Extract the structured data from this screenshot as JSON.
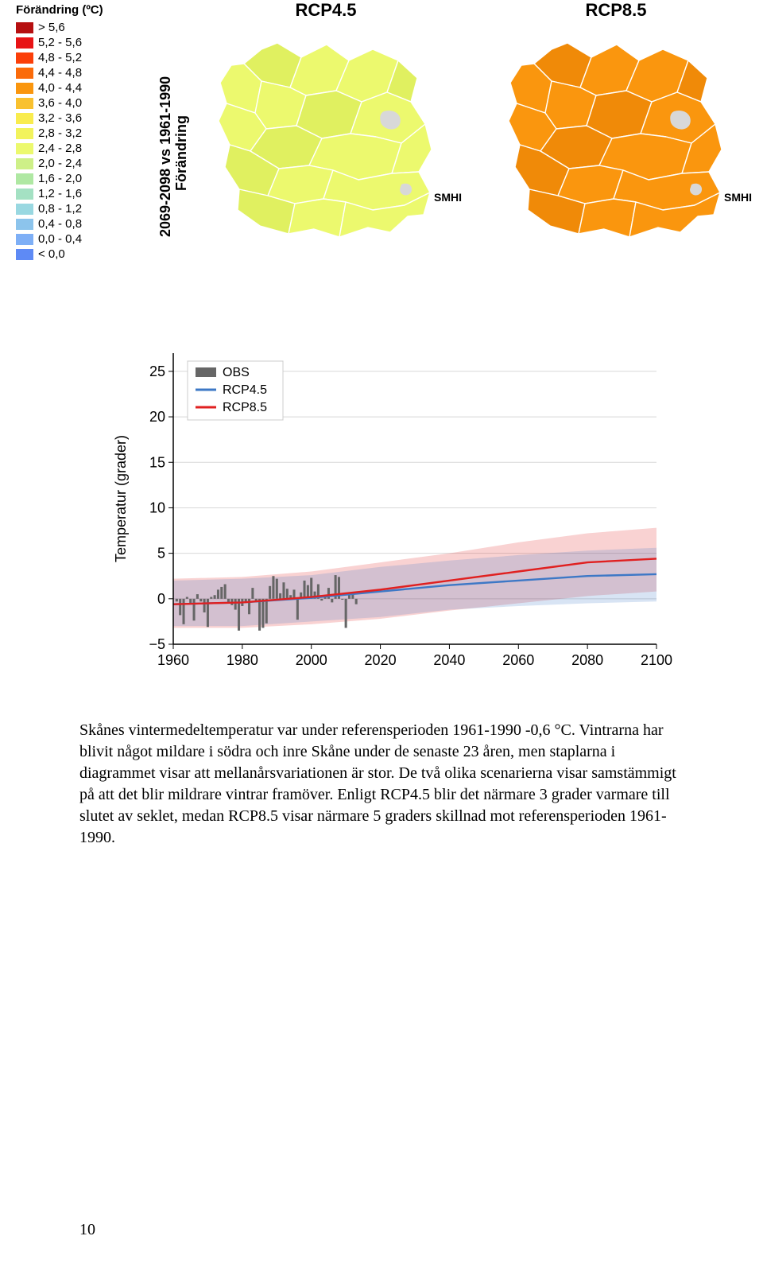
{
  "legend": {
    "title": "Förändring (ºC)",
    "items": [
      {
        "color": "#b60f10",
        "label": "> 5,6"
      },
      {
        "color": "#e81315",
        "label": "5,2 - 5,6"
      },
      {
        "color": "#fb3f09",
        "label": "4,8 - 5,2"
      },
      {
        "color": "#fb6b0a",
        "label": "4,4 - 4,8"
      },
      {
        "color": "#fa960e",
        "label": "4,0 - 4,4"
      },
      {
        "color": "#f9c12f",
        "label": "3,6 - 4,0"
      },
      {
        "color": "#f9ec4e",
        "label": "3,2 - 3,6"
      },
      {
        "color": "#f2f35c",
        "label": "2,8 - 3,2"
      },
      {
        "color": "#ecf96e",
        "label": "2,4 - 2,8"
      },
      {
        "color": "#cef088",
        "label": "2,0 - 2,4"
      },
      {
        "color": "#afe8a3",
        "label": "1,6 - 2,0"
      },
      {
        "color": "#a4e1c3",
        "label": "1,2 - 1,6"
      },
      {
        "color": "#99d8e1",
        "label": "0,8 - 1,2"
      },
      {
        "color": "#8cc4ec",
        "label": "0,4 - 0,8"
      },
      {
        "color": "#7eaff6",
        "label": "0,0 - 0,4"
      },
      {
        "color": "#5e8af5",
        "label": "< 0,0"
      }
    ]
  },
  "side_label": {
    "line1": "Förändring",
    "line2": "2069-2098 vs 1961-1990"
  },
  "maps": {
    "left": {
      "title": "RCP4.5",
      "fill": "#ecf96e",
      "fill_dark": "#e0f060",
      "attr": "SMHI"
    },
    "right": {
      "title": "RCP8.5",
      "fill": "#fa960e",
      "fill_dark": "#f08a08",
      "attr": "SMHI"
    }
  },
  "chart": {
    "ylabel": "Temperatur (grader)",
    "xlim": [
      1960,
      2100
    ],
    "ylim": [
      -5,
      27
    ],
    "xticks": [
      1960,
      1980,
      2000,
      2020,
      2040,
      2060,
      2080,
      2100
    ],
    "yticks": [
      -5,
      0,
      5,
      10,
      15,
      20,
      25
    ],
    "grid_color": "#d8d8d8",
    "axis_color": "#000000",
    "background": "#ffffff",
    "legend_items": [
      {
        "label": "OBS",
        "type": "bar",
        "color": "#666666"
      },
      {
        "label": "RCP4.5",
        "type": "line",
        "color": "#3d78c6"
      },
      {
        "label": "RCP8.5",
        "type": "line",
        "color": "#e02020"
      }
    ],
    "obs_bars": {
      "color": "#666666",
      "years": [
        1961,
        1962,
        1963,
        1964,
        1965,
        1966,
        1967,
        1968,
        1969,
        1970,
        1971,
        1972,
        1973,
        1974,
        1975,
        1976,
        1977,
        1978,
        1979,
        1980,
        1981,
        1982,
        1983,
        1984,
        1985,
        1986,
        1987,
        1988,
        1989,
        1990,
        1991,
        1992,
        1993,
        1994,
        1995,
        1996,
        1997,
        1998,
        1999,
        2000,
        2001,
        2002,
        2003,
        2004,
        2005,
        2006,
        2007,
        2008,
        2009,
        2010,
        2011,
        2012,
        2013
      ],
      "values": [
        -0.3,
        -1.8,
        -2.8,
        0.2,
        -0.6,
        -2.4,
        0.5,
        -0.3,
        -1.5,
        -3.1,
        0.2,
        0.4,
        1.0,
        1.3,
        1.6,
        -0.4,
        -0.7,
        -1.2,
        -3.5,
        -0.8,
        -0.4,
        -1.7,
        1.2,
        -0.4,
        -3.5,
        -3.2,
        -2.7,
        1.4,
        2.5,
        2.2,
        0.6,
        1.8,
        1.1,
        0.4,
        1.0,
        -2.3,
        0.7,
        2.0,
        1.5,
        2.3,
        0.8,
        1.6,
        -0.2,
        0.3,
        1.2,
        -0.4,
        2.6,
        2.4,
        -0.1,
        -3.2,
        0.4,
        0.6,
        -0.6
      ]
    },
    "rcp45": {
      "line_color": "#3d78c6",
      "band_color": "rgba(61,120,198,0.20)",
      "x": [
        1960,
        1980,
        2000,
        2020,
        2040,
        2060,
        2080,
        2100
      ],
      "y": [
        -0.6,
        -0.4,
        0.1,
        0.8,
        1.5,
        2.0,
        2.5,
        2.7
      ],
      "lo": [
        -3.0,
        -3.0,
        -2.5,
        -2.0,
        -1.2,
        -0.8,
        -0.5,
        -0.3
      ],
      "hi": [
        2.0,
        2.2,
        2.6,
        3.5,
        4.2,
        4.8,
        5.3,
        5.6
      ]
    },
    "rcp85": {
      "line_color": "#e02020",
      "band_color": "rgba(224,32,32,0.20)",
      "x": [
        1960,
        1980,
        2000,
        2020,
        2040,
        2060,
        2080,
        2100
      ],
      "y": [
        -0.6,
        -0.4,
        0.2,
        1.0,
        2.0,
        3.0,
        4.0,
        4.4
      ],
      "lo": [
        -3.2,
        -3.2,
        -2.8,
        -2.2,
        -1.3,
        -0.5,
        0.3,
        0.8
      ],
      "hi": [
        2.2,
        2.4,
        3.0,
        4.0,
        5.0,
        6.2,
        7.2,
        7.8
      ]
    }
  },
  "paragraph": "Skånes vintermedeltemperatur var under referensperioden 1961-1990 -0,6 °C. Vintrarna har blivit något mildare i södra och inre Skåne under de senaste 23 åren, men staplarna i diagrammet visar att mellanårsvariationen är stor. De två olika scenarierna visar samstämmigt på att det blir mildrare vintrar framöver. Enligt RCP4.5 blir det närmare 3 grader varmare till slutet av seklet, medan RCP8.5 visar närmare 5 graders skillnad mot referensperioden 1961-1990.",
  "page_number": "10"
}
